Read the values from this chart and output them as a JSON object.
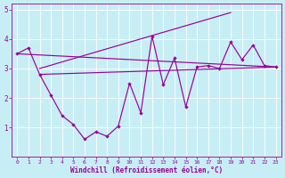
{
  "xlabel": "Windchill (Refroidissement éolien,°C)",
  "bg_color": "#c8eef5",
  "line_color": "#990099",
  "xlim": [
    -0.5,
    23.5
  ],
  "ylim": [
    0,
    5.2
  ],
  "xticks": [
    0,
    1,
    2,
    3,
    4,
    5,
    6,
    7,
    8,
    9,
    10,
    11,
    12,
    13,
    14,
    15,
    16,
    17,
    18,
    19,
    20,
    21,
    22,
    23
  ],
  "yticks": [
    1,
    2,
    3,
    4,
    5
  ],
  "series1_x": [
    0,
    1,
    2,
    3,
    4,
    5,
    6,
    7,
    8,
    9,
    10,
    11,
    12,
    13,
    14,
    15,
    16,
    17,
    18,
    19,
    20,
    21,
    22,
    23
  ],
  "series1_y": [
    3.5,
    3.7,
    2.8,
    2.1,
    1.4,
    1.1,
    0.6,
    0.85,
    0.7,
    1.05,
    2.5,
    1.5,
    4.1,
    2.45,
    3.35,
    1.7,
    3.05,
    3.1,
    3.0,
    3.9,
    3.3,
    3.8,
    3.1,
    3.05
  ],
  "series2_x": [
    2,
    19
  ],
  "series2_y": [
    3.0,
    4.9
  ],
  "series3_x": [
    2,
    23
  ],
  "series3_y": [
    2.8,
    3.05
  ],
  "series4_x": [
    0,
    23
  ],
  "series4_y": [
    3.5,
    3.05
  ]
}
